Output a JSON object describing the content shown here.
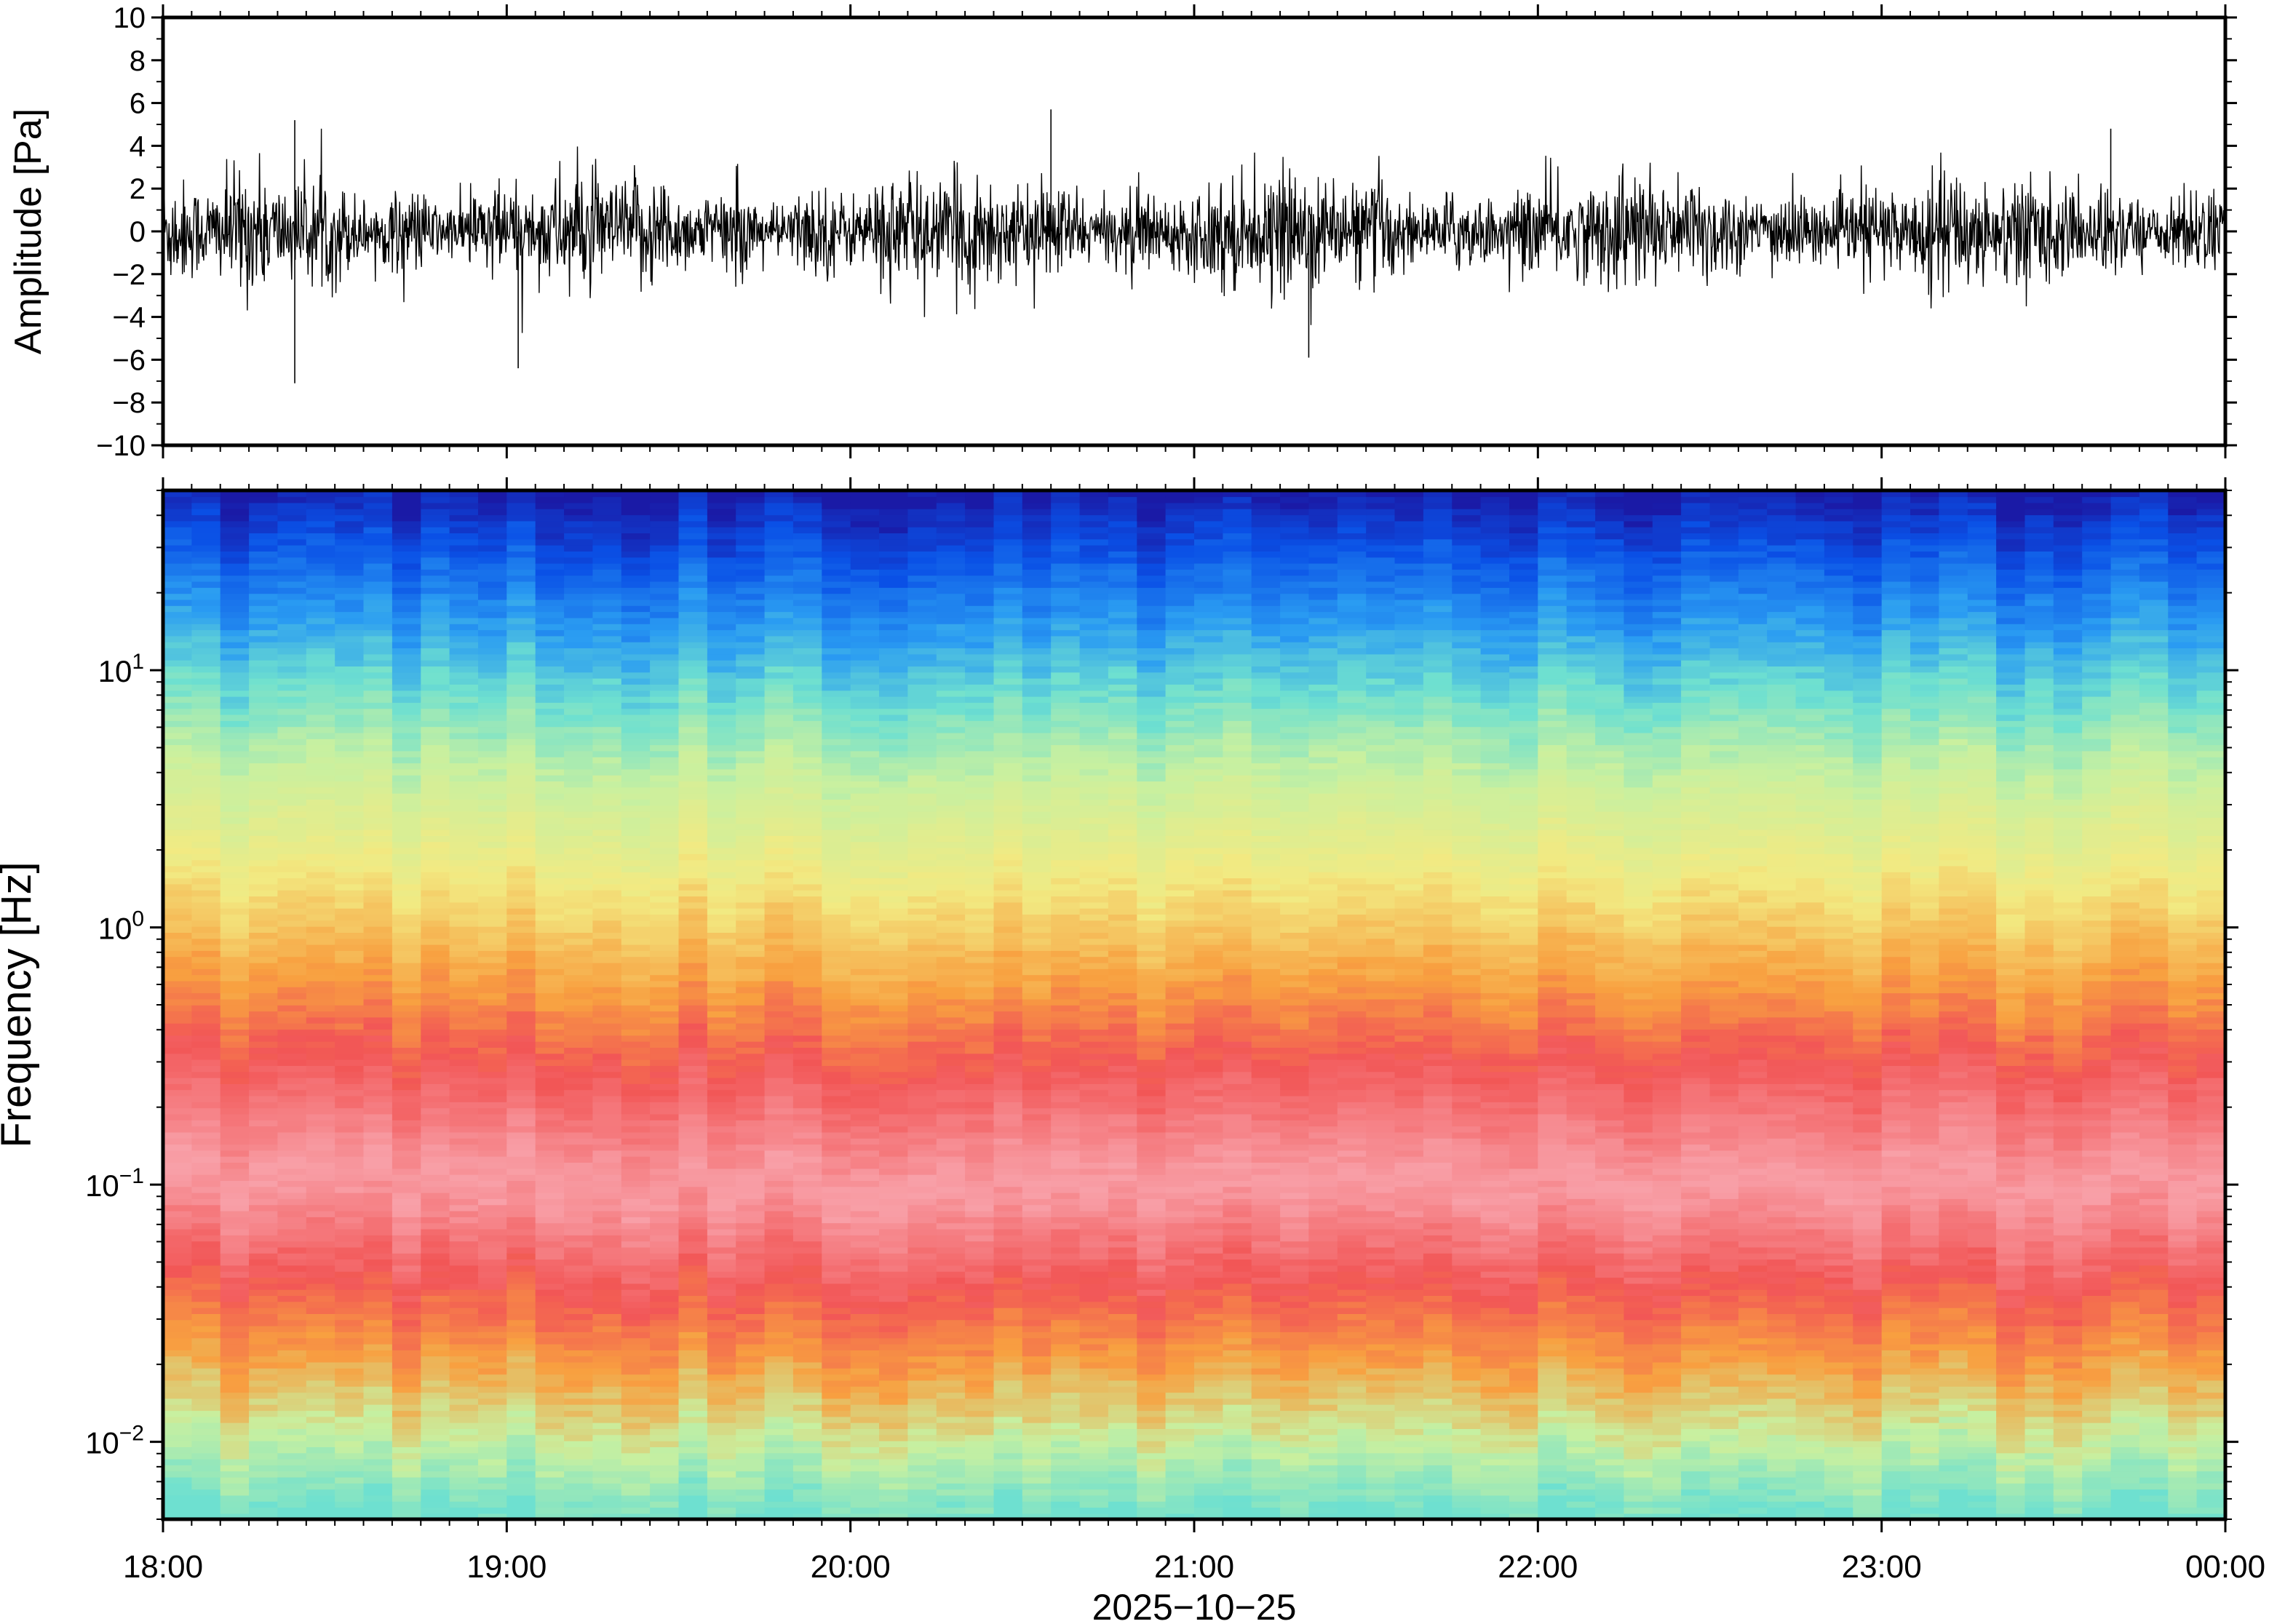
{
  "chart_data": [
    {
      "type": "line",
      "ylabel": "Amplitude [Pa]",
      "ylim": [
        -10,
        10
      ],
      "yticks": [
        "10",
        "8",
        "6",
        "4",
        "2",
        "0",
        "−2",
        "−4",
        "−6",
        "−8",
        "−10"
      ],
      "ytick_values": [
        10,
        8,
        6,
        4,
        2,
        0,
        -2,
        -4,
        -6,
        -8,
        -10
      ],
      "xlim": [
        "18:00",
        "00:00"
      ],
      "series_color": "#000000",
      "typical_range": [
        -2,
        2
      ],
      "peak_events": [
        {
          "x": "18:23",
          "y": -7.1
        },
        {
          "x": "18:23",
          "y": 5.2
        },
        {
          "x": "19:02",
          "y": -6.4
        },
        {
          "x": "20:35",
          "y": 5.7
        },
        {
          "x": "21:20",
          "y": -5.9
        },
        {
          "x": "23:40",
          "y": 4.8
        }
      ]
    },
    {
      "type": "heatmap",
      "ylabel": "Frequency [Hz]",
      "yscale": "log",
      "ylim": [
        0.005,
        50
      ],
      "yticks": [
        {
          "value": 10,
          "base": "10",
          "exp": "1"
        },
        {
          "value": 1,
          "base": "10",
          "exp": "0"
        },
        {
          "value": 0.1,
          "base": "10",
          "exp": "−1"
        },
        {
          "value": 0.01,
          "base": "10",
          "exp": "−2"
        }
      ],
      "xlabel": "2025−10−25",
      "xticks": [
        "18:00",
        "19:00",
        "20:00",
        "21:00",
        "22:00",
        "23:00",
        "00:00"
      ],
      "colormap": [
        "#1a1aa6",
        "#0a50e6",
        "#2a9cf2",
        "#6ee0d0",
        "#c8f0a0",
        "#f2ea82",
        "#f8a040",
        "#f25656",
        "#f8a0a8"
      ],
      "level_profile": [
        {
          "freq_hz": 50,
          "color": "#1a1aa6"
        },
        {
          "freq_hz": 30,
          "color": "#0a50e6"
        },
        {
          "freq_hz": 15,
          "color": "#2a9cf2"
        },
        {
          "freq_hz": 8,
          "color": "#6ee0d0"
        },
        {
          "freq_hz": 4,
          "color": "#c8f0a0"
        },
        {
          "freq_hz": 1.5,
          "color": "#f2ea82"
        },
        {
          "freq_hz": 0.6,
          "color": "#f8a040"
        },
        {
          "freq_hz": 0.3,
          "color": "#f25656"
        },
        {
          "freq_hz": 0.1,
          "color": "#f8a0a8"
        },
        {
          "freq_hz": 0.04,
          "color": "#f25656"
        },
        {
          "freq_hz": 0.02,
          "color": "#f8a040"
        },
        {
          "freq_hz": 0.01,
          "color": "#c8f0a0"
        },
        {
          "freq_hz": 0.005,
          "color": "#6ee0d0"
        }
      ]
    }
  ]
}
